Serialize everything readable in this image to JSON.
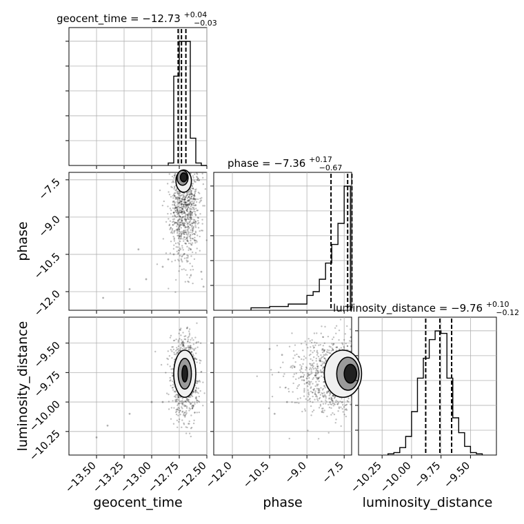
{
  "chart_data": [
    {
      "type": "histogram",
      "panel": "geocent_time",
      "title_param": "geocent_time",
      "title_median": "−12.73",
      "title_plus": "+0.04",
      "title_minus": "−0.03",
      "xlim": [
        -13.75,
        -12.5
      ],
      "bins": [
        -12.85,
        -12.8,
        -12.75,
        -12.7,
        -12.65,
        -12.6,
        -12.55,
        -12.5
      ],
      "counts": [
        0.02,
        0.72,
        1.0,
        1.0,
        0.22,
        0.02,
        0.0
      ],
      "quantiles": [
        -12.76,
        -12.73,
        -12.69
      ]
    },
    {
      "type": "scatter",
      "panel": "phase vs geocent_time",
      "xlim": [
        -13.75,
        -12.5
      ],
      "ylim": [
        -12.75,
        -7.2
      ],
      "contours": [
        {
          "cx": -12.71,
          "cy": -7.55,
          "rx": 0.07,
          "ry": 0.45
        },
        {
          "cx": -12.72,
          "cy": -7.42,
          "rx": 0.05,
          "ry": 0.3
        },
        {
          "cx": -12.71,
          "cy": -7.4,
          "rx": 0.03,
          "ry": 0.18
        }
      ],
      "scatter_points": [
        [
          -13.44,
          -12.25
        ],
        [
          -13.2,
          -11.9
        ],
        [
          -13.05,
          -11.5
        ],
        [
          -12.9,
          -11.0
        ],
        [
          -12.85,
          -10.7
        ],
        [
          -13.12,
          -10.3
        ],
        [
          -12.8,
          -10.5
        ],
        [
          -12.55,
          -11.2
        ],
        [
          -12.53,
          -11.8
        ]
      ]
    },
    {
      "type": "histogram",
      "panel": "phase",
      "title_param": "phase",
      "title_median": "−7.36",
      "title_plus": "+0.17",
      "title_minus": "−0.67",
      "xlim": [
        -12.75,
        -7.2
      ],
      "bins": [
        -11.25,
        -10.5,
        -9.75,
        -9.0,
        -8.75,
        -8.5,
        -8.25,
        -8.0,
        -7.75,
        -7.5,
        -7.25
      ],
      "counts": [
        0.02,
        0.03,
        0.05,
        0.12,
        0.15,
        0.25,
        0.38,
        0.53,
        0.7,
        1.0
      ],
      "quantiles": [
        -8.03,
        -7.36,
        -7.19
      ]
    },
    {
      "type": "scatter",
      "panel": "luminosity_distance vs geocent_time",
      "xlim": [
        -13.75,
        -12.5
      ],
      "ylim": [
        -10.45,
        -9.28
      ],
      "contours": [
        {
          "cx": -12.7,
          "cy": -9.76,
          "rx": 0.1,
          "ry": 0.2
        },
        {
          "cx": -12.7,
          "cy": -9.76,
          "rx": 0.06,
          "ry": 0.13
        },
        {
          "cx": -12.7,
          "cy": -9.76,
          "rx": 0.025,
          "ry": 0.07
        }
      ],
      "scatter_points": [
        [
          -13.5,
          -10.3
        ],
        [
          -13.4,
          -10.2
        ],
        [
          -13.2,
          -10.1
        ],
        [
          -13.0,
          -10.0
        ],
        [
          -12.9,
          -10.0
        ]
      ]
    },
    {
      "type": "scatter",
      "panel": "luminosity_distance vs phase",
      "xlim": [
        -12.75,
        -7.2
      ],
      "ylim": [
        -10.45,
        -9.28
      ],
      "contours": [
        {
          "cx": -7.55,
          "cy": -9.76,
          "rx": 0.75,
          "ry": 0.2
        },
        {
          "cx": -7.35,
          "cy": -9.76,
          "rx": 0.45,
          "ry": 0.14
        },
        {
          "cx": -7.25,
          "cy": -9.76,
          "rx": 0.25,
          "ry": 0.08
        }
      ],
      "scatter_points": [
        [
          -10.5,
          -9.55
        ],
        [
          -10.0,
          -9.6
        ],
        [
          -9.5,
          -9.7
        ],
        [
          -9.0,
          -9.8
        ],
        [
          -8.5,
          -9.9
        ],
        [
          -9.8,
          -10.0
        ],
        [
          -10.3,
          -10.1
        ]
      ]
    },
    {
      "type": "histogram",
      "panel": "luminosity_distance",
      "title_param": "luminosity_distance",
      "title_median": "−9.76",
      "title_plus": "+0.10",
      "title_minus": "−0.12",
      "xlim": [
        -10.45,
        -9.28
      ],
      "bins": [
        -10.2,
        -10.15,
        -10.1,
        -10.05,
        -10.0,
        -9.95,
        -9.9,
        -9.85,
        -9.8,
        -9.75,
        -9.7,
        -9.65,
        -9.6,
        -9.55,
        -9.5,
        -9.45,
        -9.4
      ],
      "counts": [
        0.01,
        0.02,
        0.06,
        0.15,
        0.35,
        0.62,
        0.78,
        0.93,
        1.0,
        0.98,
        0.62,
        0.3,
        0.18,
        0.07,
        0.02,
        0.01
      ],
      "quantiles": [
        -9.88,
        -9.76,
        -9.66
      ]
    }
  ],
  "axes": {
    "geocent_time": {
      "label": "geocent_time",
      "ticks": [
        -13.5,
        -13.25,
        -13.0,
        -12.75,
        -12.5
      ],
      "tick_labels": [
        "−13.50",
        "−13.25",
        "−13.00",
        "−12.75",
        "−12.50"
      ]
    },
    "phase": {
      "label": "phase",
      "ticks": [
        -12.0,
        -10.5,
        -9.0,
        -7.5
      ],
      "tick_labels": [
        "−12.0",
        "−10.5",
        "−9.0",
        "−7.5"
      ]
    },
    "luminosity_distance": {
      "label": "luminosity_distance",
      "ticks": [
        -10.25,
        -10.0,
        -9.75,
        -9.5
      ],
      "tick_labels": [
        "−10.25",
        "−10.00",
        "−9.75",
        "−9.50"
      ]
    }
  }
}
